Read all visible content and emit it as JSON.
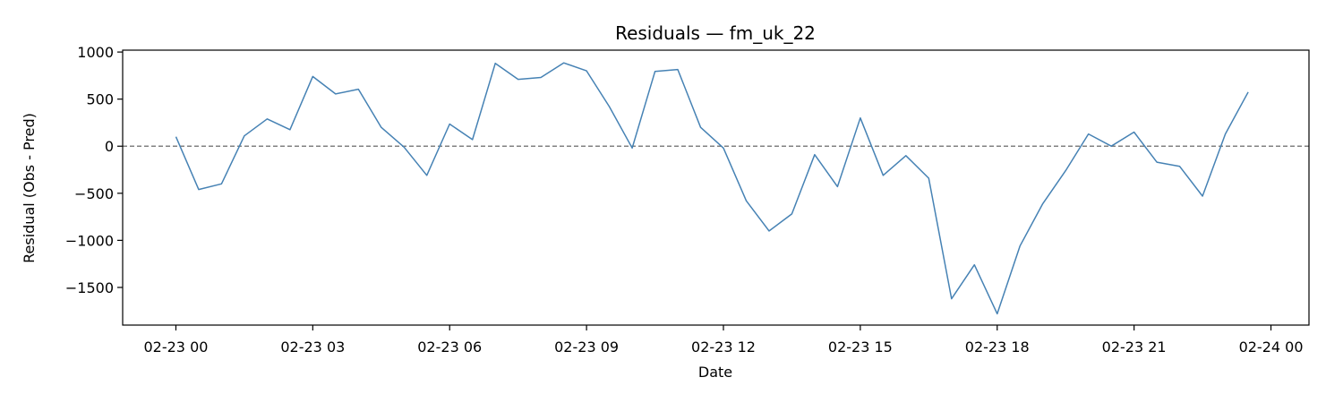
{
  "chart_data": {
    "type": "line",
    "title": "Residuals — fm_uk_22",
    "xlabel": "Date",
    "ylabel": "Residual (Obs - Pred)",
    "x_tick_labels": [
      "02-23 00",
      "02-23 03",
      "02-23 06",
      "02-23 09",
      "02-23 12",
      "02-23 15",
      "02-23 18",
      "02-23 21",
      "02-24 00"
    ],
    "y_tick_labels": [
      "1000",
      "500",
      "0",
      "−500",
      "−1000",
      "−1500"
    ],
    "y_ticks": [
      1000,
      500,
      0,
      -500,
      -1000,
      -1500
    ],
    "ylim": [
      -1900,
      1020
    ],
    "xlim": [
      "2024-02-22 22:50",
      "2024-02-24 00:50"
    ],
    "reference_line": {
      "y": 0,
      "style": "dashed",
      "color": "#808080"
    },
    "series_color": "#4682b4",
    "series": [
      {
        "x": [
          "2024-02-23 00:00",
          "2024-02-23 00:30",
          "2024-02-23 01:00",
          "2024-02-23 01:30",
          "2024-02-23 02:00",
          "2024-02-23 02:30",
          "2024-02-23 03:00",
          "2024-02-23 03:30",
          "2024-02-23 04:00",
          "2024-02-23 04:30",
          "2024-02-23 05:00",
          "2024-02-23 05:30",
          "2024-02-23 06:00",
          "2024-02-23 06:30",
          "2024-02-23 07:00",
          "2024-02-23 07:30",
          "2024-02-23 08:00",
          "2024-02-23 08:30",
          "2024-02-23 09:00",
          "2024-02-23 09:30",
          "2024-02-23 10:00",
          "2024-02-23 10:30",
          "2024-02-23 11:00",
          "2024-02-23 11:30",
          "2024-02-23 12:00",
          "2024-02-23 12:30",
          "2024-02-23 13:00",
          "2024-02-23 13:30",
          "2024-02-23 14:00",
          "2024-02-23 14:30",
          "2024-02-23 15:00",
          "2024-02-23 15:30",
          "2024-02-23 16:00",
          "2024-02-23 16:30",
          "2024-02-23 17:00",
          "2024-02-23 17:30",
          "2024-02-23 18:00",
          "2024-02-23 18:30",
          "2024-02-23 19:00",
          "2024-02-23 19:30",
          "2024-02-23 20:00",
          "2024-02-23 20:30",
          "2024-02-23 21:00",
          "2024-02-23 21:30",
          "2024-02-23 22:00",
          "2024-02-23 22:30",
          "2024-02-23 23:00",
          "2024-02-23 23:30"
        ],
        "values": [
          100,
          -460,
          -400,
          110,
          290,
          175,
          740,
          555,
          605,
          200,
          -10,
          -310,
          235,
          70,
          880,
          710,
          730,
          885,
          800,
          420,
          -20,
          795,
          815,
          200,
          -20,
          -580,
          -900,
          -720,
          -90,
          -430,
          300,
          -310,
          -100,
          -340,
          -1620,
          -1260,
          -1780,
          -1060,
          -610,
          -260,
          130,
          0,
          150,
          -170,
          -215,
          -530,
          130,
          575
        ]
      }
    ]
  }
}
